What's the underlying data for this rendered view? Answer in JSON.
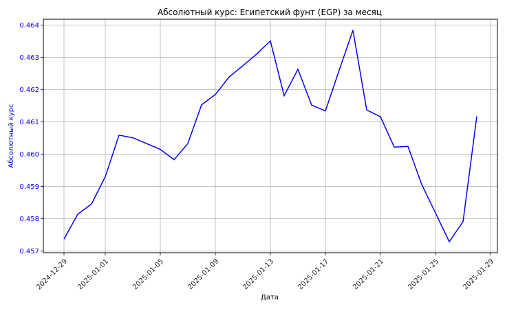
{
  "chart_data": {
    "type": "line",
    "title": "Абсолютный курс: Египетский фунт (EGP) за месяц",
    "xlabel": "Дата",
    "ylabel": "Абсолютный курс",
    "grid": true,
    "line_color": "#0000ff",
    "ylim": [
      0.45695,
      0.46418
    ],
    "xlim": [
      "2024-12-27T12:00",
      "2025-01-29T12:00"
    ],
    "x_ticks": [
      "2024-12-29",
      "2025-01-01",
      "2025-01-05",
      "2025-01-09",
      "2025-01-13",
      "2025-01-17",
      "2025-01-21",
      "2025-01-25",
      "2025-01-29"
    ],
    "y_ticks": [
      "0.457",
      "0.458",
      "0.459",
      "0.460",
      "0.461",
      "0.462",
      "0.463",
      "0.464"
    ],
    "series": [
      {
        "x": [
          "2024-12-29",
          "2024-12-30",
          "2024-12-31",
          "2025-01-01",
          "2025-01-02",
          "2025-01-03",
          "2025-01-04",
          "2025-01-05",
          "2025-01-06",
          "2025-01-07",
          "2025-01-08",
          "2025-01-09",
          "2025-01-10",
          "2025-01-11",
          "2025-01-12",
          "2025-01-13",
          "2025-01-14",
          "2025-01-15",
          "2025-01-16",
          "2025-01-17",
          "2025-01-18",
          "2025-01-19",
          "2025-01-20",
          "2025-01-21",
          "2025-01-22",
          "2025-01-23",
          "2025-01-24",
          "2025-01-25",
          "2025-01-26",
          "2025-01-27",
          "2025-01-28"
        ],
        "values": [
          0.45737,
          0.45814,
          0.45846,
          0.4593,
          0.46059,
          0.46051,
          0.46033,
          0.46015,
          0.45983,
          0.46033,
          0.46153,
          0.46185,
          0.46239,
          0.46274,
          0.4631,
          0.46351,
          0.46181,
          0.46263,
          0.46152,
          0.46134,
          0.4626,
          0.46384,
          0.46137,
          0.46116,
          0.46022,
          0.46024,
          0.45906,
          0.45818,
          0.45729,
          0.45791,
          0.46117
        ]
      }
    ]
  }
}
